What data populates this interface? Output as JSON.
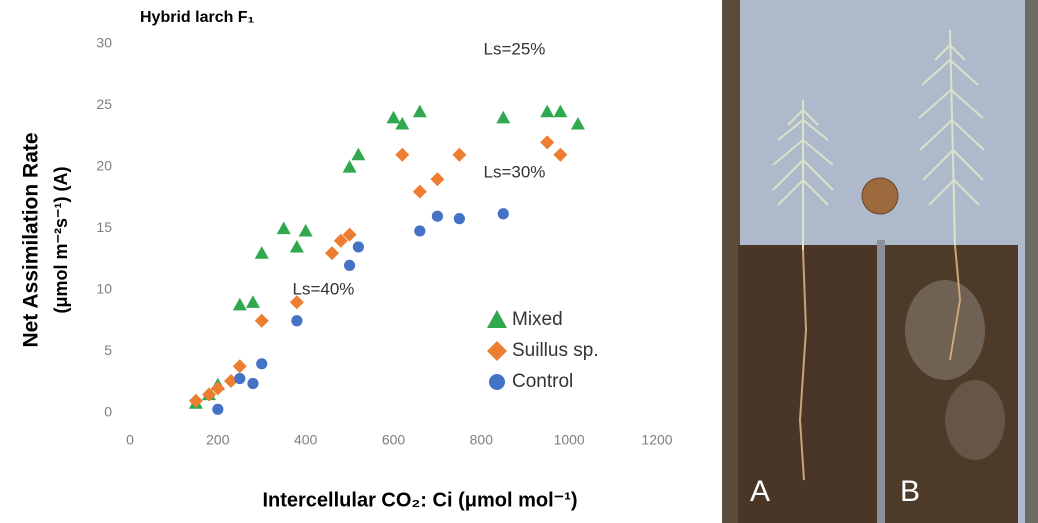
{
  "chart_data": {
    "type": "scatter",
    "title": "Hybrid larch F₁",
    "x_label": "Intercellular CO₂: Ci (μmol mol⁻¹)",
    "y_label": [
      "Net Assimilation Rate",
      "(μmol m⁻²s⁻¹) (A)"
    ],
    "xlim": [
      0,
      1200
    ],
    "xticks": [
      0,
      200,
      400,
      600,
      800,
      1000,
      1200
    ],
    "ylim": [
      0,
      30
    ],
    "yticks": [
      0,
      5,
      10,
      15,
      20,
      25,
      30
    ],
    "grid": false,
    "legend": "lower right",
    "series": [
      {
        "name": "Mixed",
        "color": "#2fa84f",
        "marker": "triangle",
        "x": [
          150,
          180,
          200,
          250,
          280,
          300,
          350,
          380,
          400,
          500,
          520,
          600,
          620,
          660,
          850,
          950,
          980,
          1020
        ],
        "values": [
          0.8,
          1.5,
          2.3,
          8.8,
          9,
          13,
          15,
          13.5,
          14.8,
          20,
          21,
          24,
          23.5,
          24.5,
          24,
          24.5,
          24.5,
          23.5
        ]
      },
      {
        "name": "Suillus sp.",
        "color": "#ed7d31",
        "marker": "diamond",
        "x": [
          150,
          180,
          200,
          230,
          250,
          300,
          380,
          460,
          480,
          500,
          620,
          660,
          700,
          750,
          950,
          980
        ],
        "values": [
          1,
          1.5,
          2,
          2.6,
          3.8,
          7.5,
          9,
          13,
          14,
          14.5,
          21,
          18,
          19,
          21,
          22,
          21
        ]
      },
      {
        "name": "Control",
        "color": "#4472c4",
        "marker": "circle",
        "x": [
          200,
          250,
          280,
          300,
          380,
          500,
          520,
          660,
          700,
          750,
          850
        ],
        "values": [
          0.3,
          2.8,
          2.4,
          4,
          7.5,
          12,
          13.5,
          14.8,
          16,
          15.8,
          16.2
        ]
      }
    ],
    "annotations": [
      {
        "text": "Ls=25%",
        "x": 805,
        "y": 29.5
      },
      {
        "text": "Ls=30%",
        "x": 805,
        "y": 19.5
      },
      {
        "text": "Ls=40%",
        "x": 370,
        "y": 10
      }
    ]
  },
  "photo_labels": [
    "A",
    "B"
  ]
}
